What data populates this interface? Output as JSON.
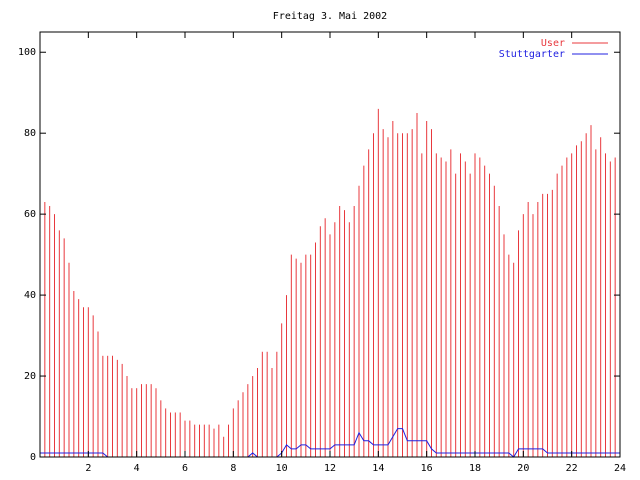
{
  "chart_data": {
    "type": "impulse-line",
    "title": "Freitag 3. Mai 2002",
    "x": [
      0,
      0.2,
      0.4,
      0.6,
      0.8,
      1,
      1.2,
      1.4,
      1.6,
      1.8,
      2,
      2.2,
      2.4,
      2.6,
      2.8,
      3,
      3.2,
      3.4,
      3.6,
      3.8,
      4,
      4.2,
      4.4,
      4.6,
      4.8,
      5,
      5.2,
      5.4,
      5.6,
      5.8,
      6,
      6.2,
      6.4,
      6.6,
      6.8,
      7,
      7.2,
      7.4,
      7.6,
      7.8,
      8,
      8.2,
      8.4,
      8.6,
      8.8,
      9,
      9.2,
      9.4,
      9.6,
      9.8,
      10,
      10.2,
      10.4,
      10.6,
      10.8,
      11,
      11.2,
      11.4,
      11.6,
      11.8,
      12,
      12.2,
      12.4,
      12.6,
      12.8,
      13,
      13.2,
      13.4,
      13.6,
      13.8,
      14,
      14.2,
      14.4,
      14.6,
      14.8,
      15,
      15.2,
      15.4,
      15.6,
      15.8,
      16,
      16.2,
      16.4,
      16.6,
      16.8,
      17,
      17.2,
      17.4,
      17.6,
      17.8,
      18,
      18.2,
      18.4,
      18.6,
      18.8,
      19,
      19.2,
      19.4,
      19.6,
      19.8,
      20,
      20.2,
      20.4,
      20.6,
      20.8,
      21,
      21.2,
      21.4,
      21.6,
      21.8,
      22,
      22.2,
      22.4,
      22.6,
      22.8,
      23,
      23.2,
      23.4,
      23.6,
      23.8,
      24
    ],
    "series": [
      {
        "name": "User",
        "color": "#e8383d",
        "style": "impulses",
        "values": [
          65,
          63,
          62,
          60,
          56,
          54,
          48,
          41,
          39,
          37,
          37,
          35,
          31,
          25,
          25,
          25,
          24,
          23,
          20,
          17,
          17,
          18,
          18,
          18,
          17,
          14,
          12,
          11,
          11,
          11,
          9,
          9,
          8,
          8,
          8,
          8,
          7,
          8,
          5,
          8,
          12,
          14,
          16,
          18,
          20,
          22,
          26,
          26,
          22,
          26,
          33,
          40,
          50,
          49,
          48,
          50,
          50,
          53,
          57,
          59,
          55,
          58,
          62,
          61,
          58,
          62,
          67,
          72,
          76,
          80,
          86,
          81,
          79,
          83,
          80,
          80,
          80,
          81,
          85,
          75,
          83,
          81,
          75,
          74,
          73,
          76,
          70,
          75,
          73,
          70,
          75,
          74,
          72,
          70,
          67,
          62,
          55,
          50,
          48,
          56,
          60,
          63,
          60,
          63,
          65,
          65,
          66,
          70,
          72,
          74,
          75,
          77,
          78,
          80,
          82,
          76,
          79,
          75,
          73,
          74,
          65
        ]
      },
      {
        "name": "Stuttgarter",
        "color": "#2020e0",
        "style": "steps",
        "values": [
          1,
          1,
          1,
          1,
          1,
          1,
          1,
          1,
          1,
          1,
          1,
          1,
          1,
          1,
          0,
          0,
          0,
          0,
          0,
          0,
          0,
          0,
          0,
          0,
          0,
          0,
          0,
          0,
          0,
          0,
          0,
          0,
          0,
          0,
          0,
          0,
          0,
          0,
          0,
          0,
          0,
          0,
          0,
          0,
          1,
          0,
          0,
          0,
          0,
          0,
          1,
          3,
          2,
          2,
          3,
          3,
          2,
          2,
          2,
          2,
          2,
          3,
          3,
          3,
          3,
          3,
          6,
          4,
          4,
          3,
          3,
          3,
          3,
          5,
          7,
          7,
          4,
          4,
          4,
          4,
          4,
          2,
          1,
          1,
          1,
          1,
          1,
          1,
          1,
          1,
          1,
          1,
          1,
          1,
          1,
          1,
          1,
          1,
          0,
          2,
          2,
          2,
          2,
          2,
          2,
          1,
          1,
          1,
          1,
          1,
          1,
          1,
          1,
          1,
          1,
          1,
          1,
          1,
          1,
          1,
          1
        ]
      }
    ],
    "xlim": [
      0,
      24
    ],
    "xticks": [
      2,
      4,
      6,
      8,
      10,
      12,
      14,
      16,
      18,
      20,
      22,
      24
    ],
    "ylim": [
      0,
      105
    ],
    "yticks": [
      0,
      20,
      40,
      60,
      80,
      100
    ],
    "legend": "top-right"
  }
}
